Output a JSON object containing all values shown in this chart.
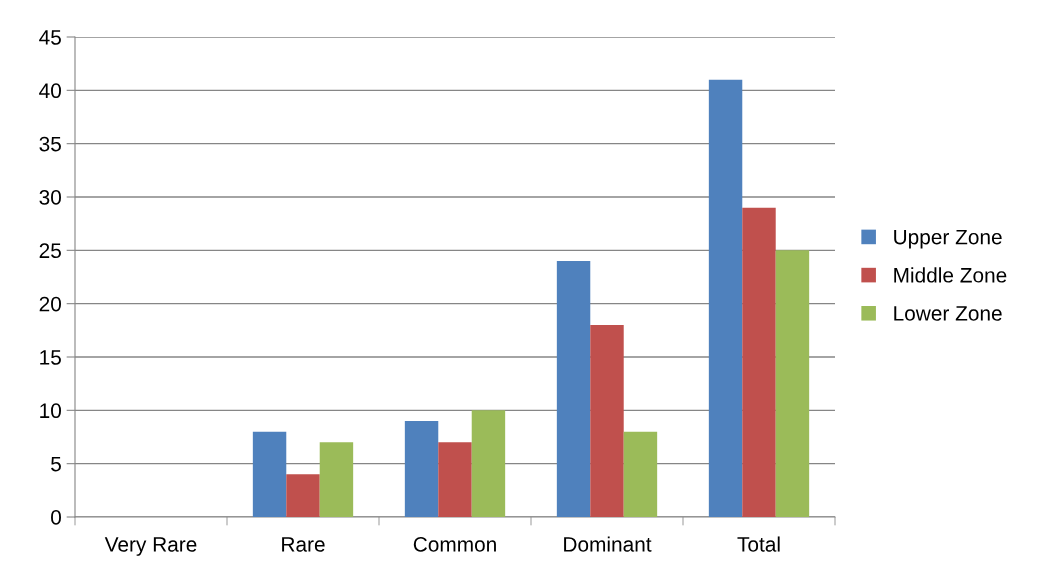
{
  "chart_data": {
    "type": "bar",
    "categories": [
      "Very Rare",
      "Rare",
      "Common",
      "Dominant",
      "Total"
    ],
    "series": [
      {
        "name": "Upper Zone",
        "color": "#4f81bd",
        "values": [
          0,
          8,
          9,
          24,
          41
        ]
      },
      {
        "name": "Middle Zone",
        "color": "#c0504d",
        "values": [
          0,
          4,
          7,
          18,
          29
        ]
      },
      {
        "name": "Lower Zone",
        "color": "#9bbb59",
        "values": [
          0,
          7,
          10,
          8,
          25
        ]
      }
    ],
    "ylim": [
      0,
      45
    ],
    "yticks": [
      0,
      5,
      10,
      15,
      20,
      25,
      30,
      35,
      40,
      45
    ],
    "grid": "y",
    "legend": "right"
  }
}
